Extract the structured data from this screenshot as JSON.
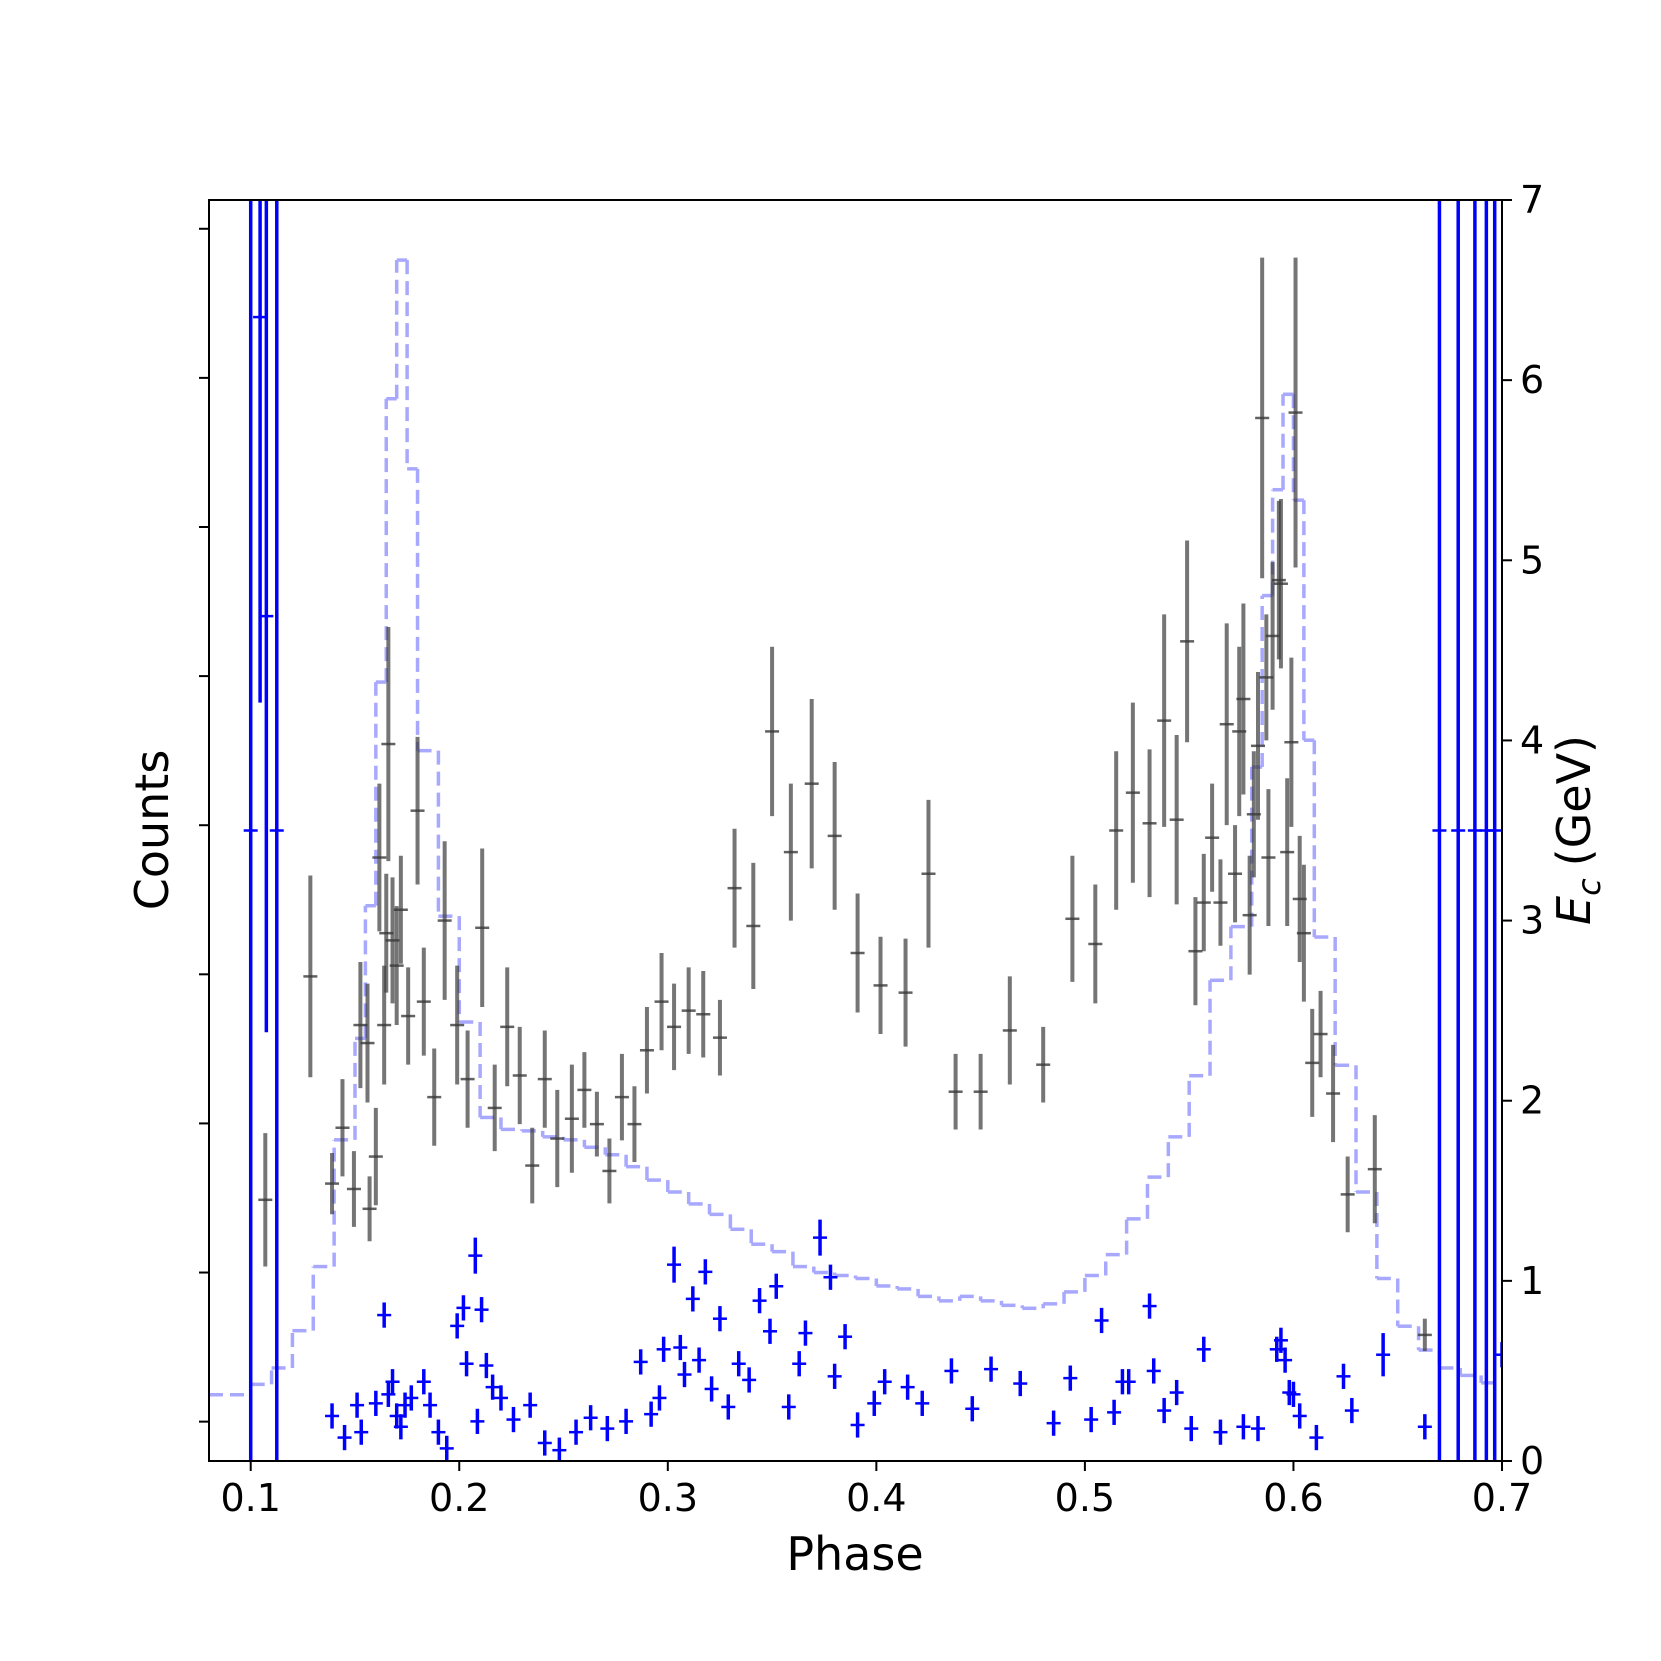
{
  "chart_data": {
    "type": "errorbar",
    "xlabel": "Phase",
    "ylabel": "Counts",
    "y2label": {
      "symbol": "E",
      "subscript": "c",
      "unit": "(GeV)"
    },
    "xlim": [
      0.08,
      0.7
    ],
    "xticks": [
      0.1,
      0.2,
      0.3,
      0.4,
      0.5,
      0.6,
      0.7
    ],
    "ylim": [
      -0.264,
      8.193
    ],
    "yticks": [
      0,
      1,
      2,
      3,
      4,
      5,
      6,
      7,
      8
    ],
    "y2lim": [
      0,
      7
    ],
    "y2ticks": [
      0,
      1,
      2,
      3,
      4,
      5,
      6,
      7
    ],
    "histogram": {
      "color": "#a8a8ff",
      "linestyle": "dashed",
      "bins": [
        0.08,
        0.1,
        0.11,
        0.12,
        0.13,
        0.14,
        0.15,
        0.155,
        0.16,
        0.165,
        0.17,
        0.175,
        0.18,
        0.19,
        0.2,
        0.21,
        0.22,
        0.23,
        0.24,
        0.25,
        0.26,
        0.27,
        0.28,
        0.29,
        0.3,
        0.31,
        0.32,
        0.33,
        0.34,
        0.35,
        0.36,
        0.37,
        0.38,
        0.39,
        0.4,
        0.41,
        0.42,
        0.43,
        0.44,
        0.45,
        0.46,
        0.47,
        0.48,
        0.49,
        0.5,
        0.51,
        0.52,
        0.53,
        0.54,
        0.55,
        0.56,
        0.57,
        0.58,
        0.585,
        0.59,
        0.595,
        0.6,
        0.605,
        0.61,
        0.62,
        0.63,
        0.64,
        0.65,
        0.66,
        0.67,
        0.68,
        0.69,
        0.7
      ],
      "values": [
        0.18,
        0.25,
        0.36,
        0.61,
        1.04,
        1.89,
        2.57,
        3.46,
        4.96,
        6.86,
        7.79,
        6.39,
        4.5,
        3.39,
        2.68,
        2.04,
        1.96,
        1.95,
        1.91,
        1.89,
        1.84,
        1.79,
        1.71,
        1.62,
        1.54,
        1.46,
        1.39,
        1.29,
        1.19,
        1.14,
        1.04,
        1.0,
        0.98,
        0.96,
        0.91,
        0.89,
        0.84,
        0.81,
        0.84,
        0.81,
        0.78,
        0.76,
        0.79,
        0.87,
        0.98,
        1.12,
        1.36,
        1.64,
        1.91,
        2.32,
        2.96,
        3.32,
        4.39,
        5.54,
        6.25,
        6.89,
        6.18,
        4.57,
        3.25,
        2.39,
        1.54,
        0.96,
        0.64,
        0.48,
        0.36,
        0.31,
        0.26
      ]
    },
    "series": [
      {
        "color": "#3a3a3a",
        "axis": "y2",
        "x": [
          0.107,
          0.1286,
          0.139,
          0.144,
          0.1495,
          0.1526,
          0.156,
          0.157,
          0.16,
          0.1617,
          0.164,
          0.165,
          0.166,
          0.168,
          0.17,
          0.172,
          0.1755,
          0.18,
          0.183,
          0.188,
          0.193,
          0.199,
          0.204,
          0.211,
          0.217,
          0.223,
          0.229,
          0.235,
          0.241,
          0.247,
          0.254,
          0.26,
          0.266,
          0.272,
          0.278,
          0.284,
          0.29,
          0.297,
          0.303,
          0.31,
          0.317,
          0.325,
          0.332,
          0.341,
          0.35,
          0.359,
          0.369,
          0.38,
          0.391,
          0.402,
          0.414,
          0.425,
          0.438,
          0.45,
          0.464,
          0.48,
          0.494,
          0.505,
          0.515,
          0.523,
          0.531,
          0.538,
          0.544,
          0.549,
          0.553,
          0.557,
          0.561,
          0.565,
          0.568,
          0.572,
          0.574,
          0.576,
          0.579,
          0.581,
          0.583,
          0.585,
          0.587,
          0.588,
          0.59,
          0.593,
          0.594,
          0.597,
          0.599,
          0.601,
          0.603,
          0.605,
          0.609,
          0.613,
          0.619,
          0.626,
          0.639,
          0.663
        ],
        "values": [
          1.45,
          2.69,
          1.54,
          1.85,
          1.51,
          2.42,
          2.32,
          1.4,
          1.69,
          3.35,
          2.42,
          2.93,
          3.98,
          2.89,
          2.75,
          3.06,
          2.47,
          3.61,
          2.55,
          2.02,
          3.0,
          2.42,
          2.12,
          2.96,
          1.96,
          2.41,
          2.14,
          1.64,
          2.12,
          1.79,
          1.9,
          2.06,
          1.87,
          1.61,
          2.02,
          1.87,
          2.28,
          2.55,
          2.41,
          2.5,
          2.48,
          2.35,
          3.18,
          2.97,
          4.05,
          3.38,
          3.76,
          3.47,
          2.82,
          2.64,
          2.6,
          3.26,
          2.05,
          2.05,
          2.39,
          2.2,
          3.01,
          2.87,
          3.5,
          3.71,
          3.54,
          4.11,
          3.56,
          4.55,
          2.83,
          3.1,
          3.46,
          3.1,
          4.09,
          3.26,
          4.05,
          4.23,
          3.03,
          3.59,
          3.97,
          5.79,
          4.35,
          3.35,
          4.58,
          4.89,
          4.87,
          3.38,
          3.99,
          5.82,
          3.12,
          2.93,
          2.21,
          2.37,
          2.04,
          1.48,
          1.62,
          0.7
        ],
        "errors": [
          0.37,
          0.56,
          0.17,
          0.27,
          0.21,
          0.35,
          0.33,
          0.18,
          0.27,
          0.41,
          0.33,
          0.33,
          0.65,
          0.35,
          0.33,
          0.3,
          0.27,
          0.41,
          0.3,
          0.27,
          0.44,
          0.33,
          0.27,
          0.44,
          0.24,
          0.33,
          0.27,
          0.21,
          0.27,
          0.27,
          0.3,
          0.21,
          0.18,
          0.18,
          0.24,
          0.21,
          0.24,
          0.27,
          0.24,
          0.24,
          0.24,
          0.21,
          0.33,
          0.35,
          0.47,
          0.38,
          0.47,
          0.41,
          0.33,
          0.27,
          0.3,
          0.41,
          0.21,
          0.21,
          0.3,
          0.21,
          0.35,
          0.33,
          0.44,
          0.5,
          0.41,
          0.59,
          0.47,
          0.56,
          0.3,
          0.27,
          0.3,
          0.24,
          0.56,
          0.27,
          0.47,
          0.53,
          0.33,
          0.35,
          0.41,
          0.89,
          0.35,
          0.38,
          0.41,
          0.44,
          0.47,
          0.41,
          0.47,
          0.86,
          0.35,
          0.38,
          0.3,
          0.24,
          0.27,
          0.21,
          0.3,
          0.09
        ]
      },
      {
        "color": "#0000ff",
        "axis": "y2",
        "x": [
          0.1,
          0.1045,
          0.1075,
          0.1125,
          0.139,
          0.145,
          0.151,
          0.153,
          0.16,
          0.164,
          0.166,
          0.168,
          0.17,
          0.172,
          0.174,
          0.177,
          0.183,
          0.186,
          0.19,
          0.194,
          0.199,
          0.202,
          0.2035,
          0.2077,
          0.2087,
          0.2107,
          0.213,
          0.216,
          0.22,
          0.226,
          0.234,
          0.241,
          0.248,
          0.256,
          0.263,
          0.271,
          0.28,
          0.287,
          0.292,
          0.296,
          0.298,
          0.303,
          0.306,
          0.308,
          0.312,
          0.315,
          0.318,
          0.321,
          0.325,
          0.329,
          0.334,
          0.339,
          0.344,
          0.349,
          0.352,
          0.358,
          0.363,
          0.366,
          0.373,
          0.378,
          0.38,
          0.385,
          0.391,
          0.399,
          0.404,
          0.415,
          0.422,
          0.436,
          0.446,
          0.455,
          0.469,
          0.485,
          0.493,
          0.503,
          0.508,
          0.514,
          0.518,
          0.521,
          0.531,
          0.533,
          0.538,
          0.544,
          0.551,
          0.557,
          0.565,
          0.576,
          0.583,
          0.592,
          0.594,
          0.596,
          0.598,
          0.6,
          0.603,
          0.611,
          0.624,
          0.628,
          0.643,
          0.663,
          0.67,
          0.679,
          0.687,
          0.6925,
          0.6965,
          0.7
        ],
        "values": [
          3.5,
          6.35,
          4.69,
          3.5,
          0.25,
          0.13,
          0.31,
          0.16,
          0.32,
          0.81,
          0.37,
          0.44,
          0.25,
          0.19,
          0.31,
          0.35,
          0.44,
          0.31,
          0.16,
          0.07,
          0.75,
          0.85,
          0.54,
          1.14,
          0.22,
          0.84,
          0.53,
          0.41,
          0.35,
          0.23,
          0.31,
          0.1,
          0.06,
          0.16,
          0.24,
          0.18,
          0.22,
          0.55,
          0.26,
          0.35,
          0.62,
          1.09,
          0.63,
          0.48,
          0.9,
          0.56,
          1.05,
          0.4,
          0.79,
          0.3,
          0.54,
          0.45,
          0.89,
          0.72,
          0.97,
          0.3,
          0.54,
          0.71,
          1.24,
          1.02,
          0.47,
          0.69,
          0.2,
          0.32,
          0.44,
          0.41,
          0.32,
          0.5,
          0.29,
          0.51,
          0.43,
          0.21,
          0.46,
          0.23,
          0.78,
          0.27,
          0.44,
          0.44,
          0.86,
          0.5,
          0.28,
          0.38,
          0.18,
          0.62,
          0.16,
          0.19,
          0.18,
          0.62,
          0.67,
          0.56,
          0.38,
          0.37,
          0.25,
          0.13,
          0.47,
          0.28,
          0.59,
          0.19,
          3.5,
          3.5,
          3.5,
          3.5,
          3.5,
          0.59
        ],
        "errors": [
          3.5,
          2.14,
          2.31,
          3.5,
          0.07,
          0.07,
          0.07,
          0.07,
          0.07,
          0.07,
          0.07,
          0.07,
          0.07,
          0.07,
          0.07,
          0.07,
          0.07,
          0.07,
          0.07,
          0.07,
          0.07,
          0.07,
          0.07,
          0.1,
          0.07,
          0.07,
          0.07,
          0.07,
          0.07,
          0.07,
          0.07,
          0.07,
          0.07,
          0.07,
          0.07,
          0.07,
          0.07,
          0.07,
          0.07,
          0.07,
          0.07,
          0.1,
          0.07,
          0.07,
          0.07,
          0.07,
          0.07,
          0.07,
          0.07,
          0.07,
          0.07,
          0.07,
          0.07,
          0.07,
          0.07,
          0.07,
          0.07,
          0.07,
          0.1,
          0.07,
          0.07,
          0.07,
          0.07,
          0.07,
          0.07,
          0.07,
          0.07,
          0.07,
          0.07,
          0.07,
          0.07,
          0.07,
          0.07,
          0.07,
          0.07,
          0.07,
          0.07,
          0.07,
          0.07,
          0.07,
          0.07,
          0.07,
          0.07,
          0.07,
          0.07,
          0.07,
          0.07,
          0.07,
          0.07,
          0.07,
          0.07,
          0.07,
          0.07,
          0.07,
          0.07,
          0.07,
          0.12,
          0.07,
          3.5,
          3.5,
          3.5,
          3.5,
          3.5,
          0.07
        ]
      }
    ]
  }
}
